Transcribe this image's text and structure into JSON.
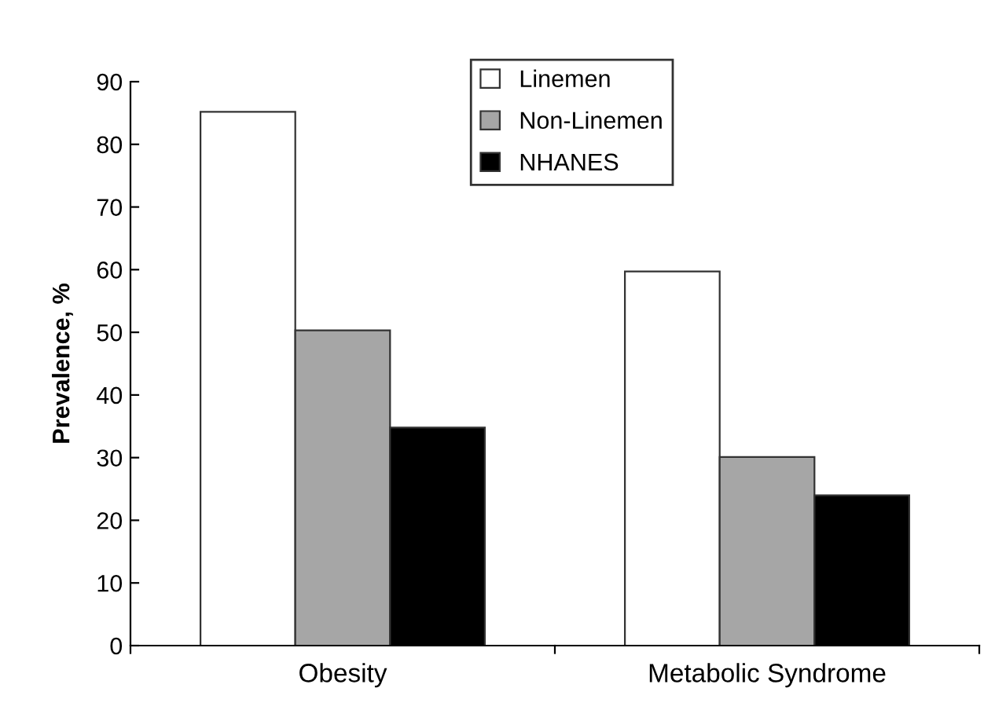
{
  "chart_data": {
    "type": "bar",
    "ylabel": "Prevalence, %",
    "categories": [
      "Obesity",
      "Metabolic Syndrome"
    ],
    "series": [
      {
        "name": "Linemen",
        "color": "#ffffff",
        "values": [
          85.2,
          59.7
        ]
      },
      {
        "name": "Non-Linemen",
        "color": "#a6a6a6",
        "values": [
          50.3,
          30.1
        ]
      },
      {
        "name": "NHANES",
        "color": "#000000",
        "values": [
          34.8,
          24.0
        ]
      }
    ],
    "ylim": [
      0,
      90
    ],
    "yticks": [
      0,
      10,
      20,
      30,
      40,
      50,
      60,
      70,
      80,
      90
    ],
    "grid": false,
    "legend": "top"
  }
}
